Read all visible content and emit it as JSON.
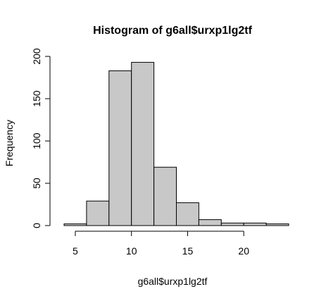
{
  "chart_data": {
    "type": "bar",
    "subtype": "histogram",
    "title": "Histogram of g6all$urxp1lg2tf",
    "xlabel": "g6all$urxp1lg2tf",
    "ylabel": "Frequency",
    "bins": [
      {
        "start": 4,
        "end": 6,
        "count": 2
      },
      {
        "start": 6,
        "end": 8,
        "count": 29
      },
      {
        "start": 8,
        "end": 10,
        "count": 183
      },
      {
        "start": 10,
        "end": 12,
        "count": 193
      },
      {
        "start": 12,
        "end": 14,
        "count": 69
      },
      {
        "start": 14,
        "end": 16,
        "count": 27
      },
      {
        "start": 16,
        "end": 18,
        "count": 7
      },
      {
        "start": 18,
        "end": 20,
        "count": 3
      },
      {
        "start": 20,
        "end": 22,
        "count": 3
      },
      {
        "start": 22,
        "end": 24,
        "count": 2
      }
    ],
    "xlim": [
      4,
      24
    ],
    "ylim": [
      0,
      200
    ],
    "x_ticks": [
      "5",
      "10",
      "15",
      "20"
    ],
    "y_ticks": [
      "0",
      "50",
      "100",
      "150",
      "200"
    ],
    "grid": false,
    "legend": "none",
    "bar_color": "#c8c8c8",
    "edge_color": "#000000"
  }
}
